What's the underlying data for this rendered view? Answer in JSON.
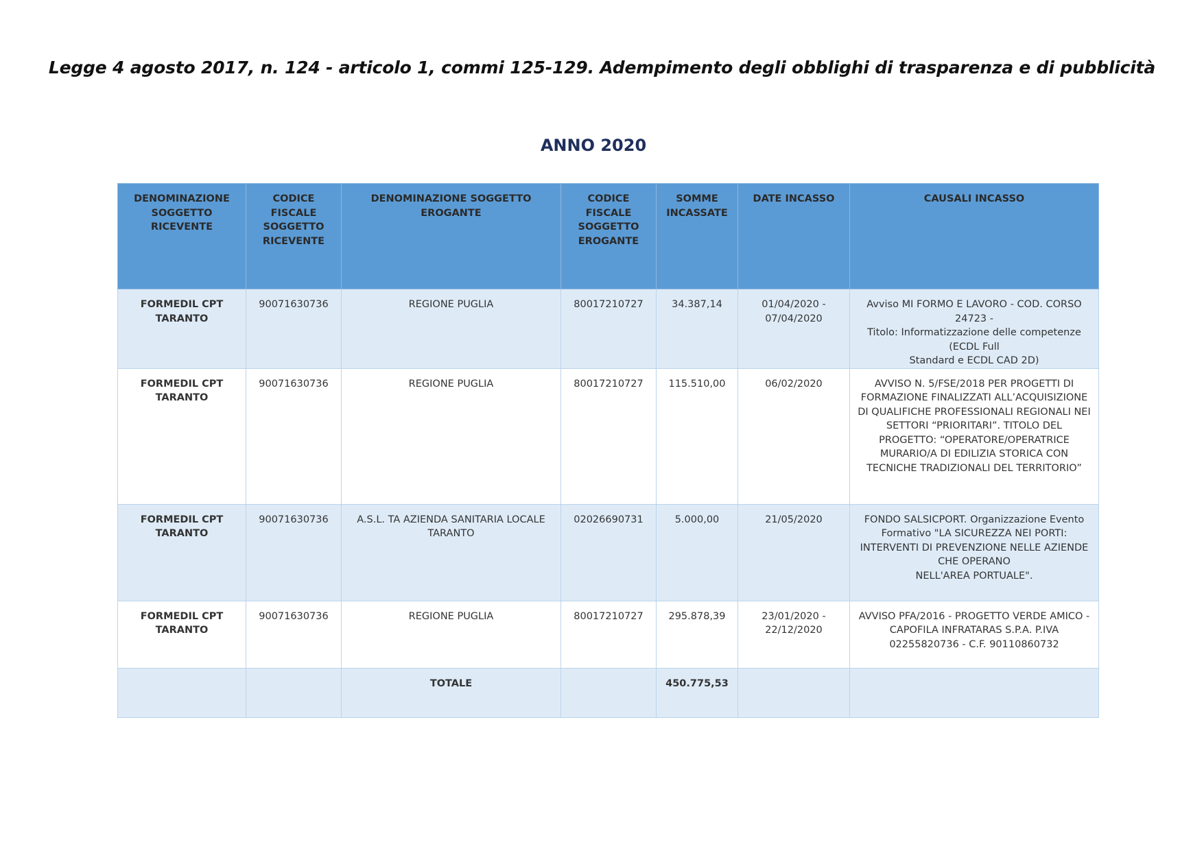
{
  "document": {
    "title": "Legge 4 agosto 2017, n. 124 - articolo 1, commi 125-129. Adempimento degli obblighi di trasparenza e di pubblicità",
    "year_title": "ANNO 2020"
  },
  "table": {
    "headers": [
      "DENOMINAZIONE SOGGETTO RICEVENTE",
      "CODICE FISCALE SOGGETTO RICEVENTE",
      "DENOMINAZIONE SOGGETTO EROGANTE",
      "CODICE FISCALE SOGGETTO EROGANTE",
      "SOMME INCASSATE",
      "DATE INCASSO",
      "CAUSALI INCASSO"
    ],
    "rows": [
      {
        "ricevente": "FORMEDIL CPT TARANTO",
        "cf_ricevente": "90071630736",
        "erogante": "REGIONE PUGLIA",
        "cf_erogante": "80017210727",
        "somme": "34.387,14",
        "date": "01/04/2020 - 07/04/2020",
        "causale_lines": [
          "Avviso MI FORMO E LAVORO - COD. CORSO 24723 -",
          "Titolo: Informatizzazione delle competenze (ECDL Full",
          "Standard e ECDL CAD 2D)"
        ]
      },
      {
        "ricevente": "FORMEDIL CPT TARANTO",
        "cf_ricevente": "90071630736",
        "erogante": "REGIONE PUGLIA",
        "cf_erogante": "80017210727",
        "somme": "115.510,00",
        "date": "06/02/2020",
        "causale_lines": [
          "AVVISO N. 5/FSE/2018 PER PROGETTI DI FORMAZIONE FINALIZZATI ALL’ACQUISIZIONE DI QUALIFICHE PROFESSIONALI REGIONALI NEI SETTORI “PRIORITARI”. TITOLO DEL PROGETTO: “OPERATORE/OPERATRICE MURARIO/A DI EDILIZIA STORICA CON TECNICHE TRADIZIONALI DEL TERRITORIO”"
        ]
      },
      {
        "ricevente": "FORMEDIL CPT TARANTO",
        "cf_ricevente": "90071630736",
        "erogante": "A.S.L. TA AZIENDA SANITARIA LOCALE TARANTO",
        "cf_erogante": "02026690731",
        "somme": "5.000,00",
        "date": "21/05/2020",
        "causale_lines": [
          "FONDO SALSICPORT. Organizzazione Evento Formativo \"LA SICUREZZA NEI PORTI: INTERVENTI DI PREVENZIONE NELLE AZIENDE CHE OPERANO",
          "NELL'AREA PORTUALE\"."
        ]
      },
      {
        "ricevente": "FORMEDIL CPT TARANTO",
        "cf_ricevente": "90071630736",
        "erogante": "REGIONE PUGLIA",
        "cf_erogante": "80017210727",
        "somme": "295.878,39",
        "date": "23/01/2020 - 22/12/2020",
        "causale_lines": [
          "AVVISO PFA/2016 - PROGETTO VERDE AMICO - CAPOFILA INFRATARAS S.P.A. P.IVA 02255820736 - C.F. 90110860732"
        ]
      }
    ],
    "total": {
      "label": "TOTALE",
      "value": "450.775,53"
    }
  }
}
